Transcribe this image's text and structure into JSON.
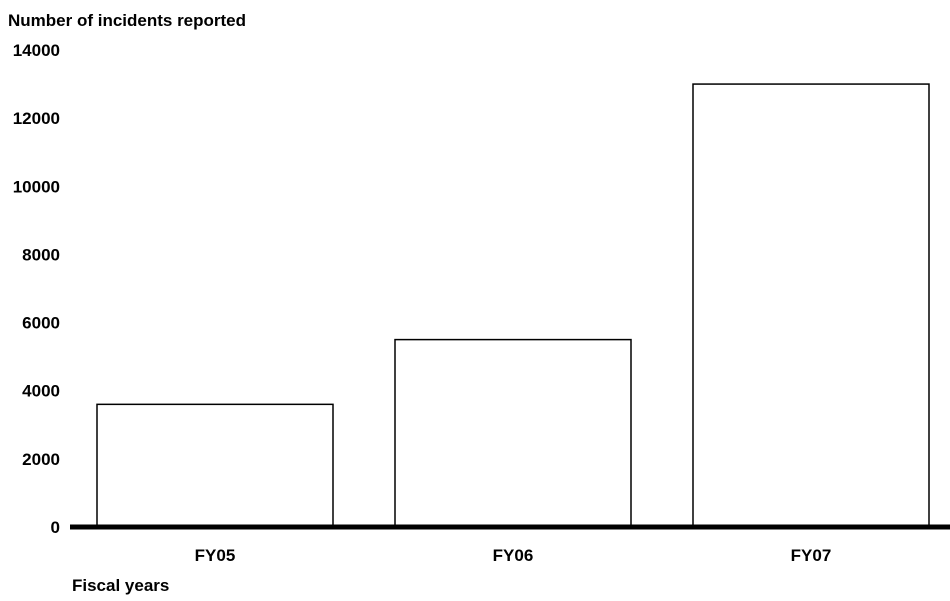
{
  "chart_data": {
    "type": "bar",
    "title": "",
    "ylabel": "Number of incidents reported",
    "xlabel": "Fiscal years",
    "categories": [
      "FY05",
      "FY06",
      "FY07"
    ],
    "values": [
      3600,
      5500,
      13000
    ],
    "ylim": [
      0,
      14000
    ],
    "yticks": [
      0,
      2000,
      4000,
      6000,
      8000,
      10000,
      12000,
      14000
    ],
    "grid": false,
    "legend": "none",
    "colors": {
      "bar_fill": "#ffffff",
      "bar_stroke": "#000000",
      "axis": "#000000"
    }
  }
}
